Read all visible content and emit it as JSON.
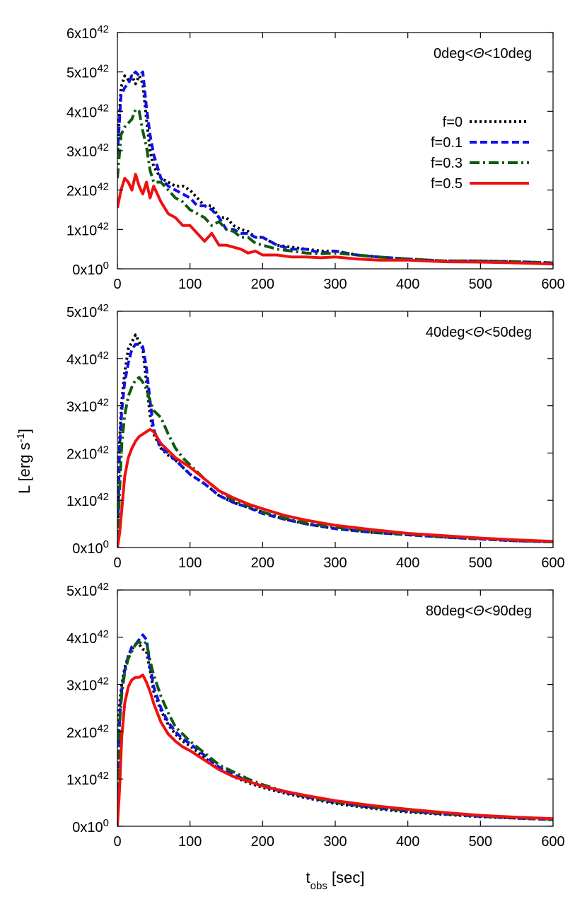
{
  "chart_data": {
    "type": "line",
    "ylabel": "L [erg s",
    "ylabel_sup": "-1",
    "ylabel_close": "]",
    "xlabel": "t",
    "xlabel_sub": "obs",
    "xlabel_rest": " [sec]",
    "xlim": [
      0,
      600
    ],
    "xticks": [
      0,
      100,
      200,
      300,
      400,
      500,
      600
    ],
    "legend_position": "top-right",
    "series_styles": [
      {
        "name": "f=0",
        "color": "#000000",
        "dash": "3,4",
        "width": 4
      },
      {
        "name": "f=0.1",
        "color": "#1010ee",
        "dash": "10,5",
        "width": 4
      },
      {
        "name": "f=0.3",
        "color": "#0f5a0f",
        "dash": "14,5,3,5",
        "width": 4
      },
      {
        "name": "f=0.5",
        "color": "#ee1111",
        "dash": "",
        "width": 4
      }
    ],
    "panels": [
      {
        "title": "0deg<Θ<10deg",
        "ylim": [
          0,
          6
        ],
        "yticks": [
          {
            "value": 0,
            "mant": "0x10",
            "exp": "0"
          },
          {
            "value": 1,
            "mant": "1x10",
            "exp": "42"
          },
          {
            "value": 2,
            "mant": "2x10",
            "exp": "42"
          },
          {
            "value": 3,
            "mant": "3x10",
            "exp": "42"
          },
          {
            "value": 4,
            "mant": "4x10",
            "exp": "42"
          },
          {
            "value": 5,
            "mant": "5x10",
            "exp": "42"
          },
          {
            "value": 6,
            "mant": "6x10",
            "exp": "42"
          }
        ],
        "legend": [
          "f=0",
          "f=0.1",
          "f=0.3",
          "f=0.5"
        ],
        "series": [
          {
            "name": "f=0",
            "x": [
              0,
              5,
              10,
              15,
              20,
              25,
              30,
              35,
              40,
              45,
              50,
              60,
              70,
              80,
              90,
              100,
              110,
              120,
              130,
              140,
              150,
              160,
              170,
              180,
              190,
              200,
              220,
              240,
              260,
              280,
              300,
              330,
              360,
              400,
              450,
              500,
              550,
              600
            ],
            "y": [
              3.0,
              4.6,
              4.9,
              4.8,
              4.9,
              4.7,
              4.9,
              4.7,
              3.8,
              3.0,
              2.6,
              2.3,
              2.2,
              2.1,
              2.1,
              2.0,
              1.8,
              1.6,
              1.6,
              1.3,
              1.3,
              1.1,
              1.0,
              0.95,
              0.8,
              0.8,
              0.6,
              0.55,
              0.5,
              0.45,
              0.45,
              0.35,
              0.3,
              0.25,
              0.2,
              0.2,
              0.18,
              0.15
            ]
          },
          {
            "name": "f=0.1",
            "x": [
              0,
              5,
              10,
              15,
              20,
              25,
              30,
              35,
              40,
              45,
              50,
              60,
              70,
              80,
              90,
              100,
              110,
              120,
              130,
              140,
              150,
              160,
              170,
              180,
              190,
              200,
              220,
              240,
              260,
              280,
              300,
              330,
              360,
              400,
              450,
              500,
              550,
              600
            ],
            "y": [
              2.9,
              4.4,
              4.6,
              4.7,
              4.9,
              5.0,
              4.9,
              5.0,
              4.1,
              3.4,
              2.9,
              2.3,
              2.1,
              2.0,
              1.9,
              1.8,
              1.6,
              1.6,
              1.5,
              1.3,
              1.0,
              1.0,
              0.9,
              0.9,
              0.8,
              0.8,
              0.6,
              0.5,
              0.5,
              0.4,
              0.45,
              0.35,
              0.3,
              0.25,
              0.2,
              0.2,
              0.18,
              0.15
            ]
          },
          {
            "name": "f=0.3",
            "x": [
              0,
              5,
              10,
              15,
              20,
              25,
              30,
              35,
              40,
              45,
              50,
              60,
              70,
              80,
              90,
              100,
              110,
              120,
              130,
              140,
              150,
              160,
              170,
              180,
              190,
              200,
              220,
              240,
              260,
              280,
              300,
              330,
              360,
              400,
              450,
              500,
              550,
              600
            ],
            "y": [
              2.3,
              3.4,
              3.6,
              3.7,
              3.8,
              4.05,
              4.0,
              3.5,
              3.1,
              2.5,
              2.2,
              2.2,
              2.0,
              1.8,
              1.7,
              1.5,
              1.4,
              1.3,
              1.1,
              1.2,
              1.0,
              0.95,
              0.8,
              0.8,
              0.65,
              0.6,
              0.5,
              0.45,
              0.4,
              0.38,
              0.4,
              0.35,
              0.3,
              0.25,
              0.2,
              0.2,
              0.18,
              0.15
            ]
          },
          {
            "name": "f=0.5",
            "x": [
              0,
              5,
              10,
              15,
              20,
              25,
              30,
              35,
              40,
              45,
              50,
              60,
              70,
              80,
              90,
              100,
              110,
              120,
              130,
              140,
              150,
              160,
              170,
              180,
              190,
              200,
              220,
              240,
              260,
              280,
              300,
              330,
              360,
              400,
              450,
              500,
              550,
              600
            ],
            "y": [
              1.55,
              2.0,
              2.3,
              2.2,
              2.0,
              2.4,
              2.1,
              1.9,
              2.2,
              1.8,
              2.1,
              1.7,
              1.4,
              1.3,
              1.1,
              1.1,
              0.9,
              0.7,
              0.9,
              0.6,
              0.6,
              0.55,
              0.5,
              0.4,
              0.45,
              0.35,
              0.35,
              0.3,
              0.3,
              0.28,
              0.3,
              0.25,
              0.22,
              0.22,
              0.18,
              0.17,
              0.15,
              0.12
            ]
          }
        ]
      },
      {
        "title": "40deg<Θ<50deg",
        "ylim": [
          0,
          5
        ],
        "yticks": [
          {
            "value": 0,
            "mant": "0x10",
            "exp": "0"
          },
          {
            "value": 1,
            "mant": "1x10",
            "exp": "42"
          },
          {
            "value": 2,
            "mant": "2x10",
            "exp": "42"
          },
          {
            "value": 3,
            "mant": "3x10",
            "exp": "42"
          },
          {
            "value": 4,
            "mant": "4x10",
            "exp": "42"
          },
          {
            "value": 5,
            "mant": "5x10",
            "exp": "42"
          }
        ],
        "legend": [],
        "series": [
          {
            "name": "f=0",
            "x": [
              0,
              3,
              6,
              10,
              15,
              20,
              25,
              30,
              35,
              40,
              45,
              50,
              60,
              70,
              80,
              90,
              100,
              120,
              140,
              160,
              180,
              200,
              230,
              260,
              300,
              350,
              400,
              450,
              500,
              550,
              600
            ],
            "y": [
              0.0,
              2.3,
              3.1,
              3.7,
              4.2,
              4.35,
              4.5,
              4.35,
              4.2,
              3.5,
              2.8,
              2.4,
              2.1,
              1.95,
              1.85,
              1.7,
              1.55,
              1.35,
              1.1,
              0.95,
              0.85,
              0.75,
              0.6,
              0.5,
              0.4,
              0.32,
              0.27,
              0.22,
              0.18,
              0.14,
              0.12
            ]
          },
          {
            "name": "f=0.1",
            "x": [
              0,
              3,
              6,
              10,
              15,
              20,
              25,
              30,
              35,
              40,
              45,
              50,
              60,
              70,
              80,
              90,
              100,
              120,
              140,
              160,
              180,
              200,
              230,
              260,
              300,
              350,
              400,
              450,
              500,
              550,
              600
            ],
            "y": [
              0.0,
              2.1,
              2.9,
              3.5,
              3.9,
              4.2,
              4.3,
              4.3,
              4.25,
              3.8,
              3.1,
              2.5,
              2.1,
              2.0,
              1.85,
              1.7,
              1.55,
              1.35,
              1.1,
              0.95,
              0.85,
              0.72,
              0.6,
              0.5,
              0.4,
              0.32,
              0.27,
              0.22,
              0.18,
              0.14,
              0.12
            ]
          },
          {
            "name": "f=0.3",
            "x": [
              0,
              3,
              6,
              10,
              15,
              20,
              25,
              30,
              35,
              40,
              45,
              50,
              60,
              70,
              80,
              90,
              100,
              120,
              140,
              160,
              180,
              200,
              230,
              260,
              300,
              350,
              400,
              450,
              500,
              550,
              600
            ],
            "y": [
              0.0,
              1.2,
              2.2,
              2.8,
              3.2,
              3.4,
              3.55,
              3.6,
              3.5,
              3.35,
              3.1,
              2.9,
              2.75,
              2.4,
              2.1,
              1.9,
              1.75,
              1.45,
              1.2,
              1.0,
              0.88,
              0.75,
              0.62,
              0.52,
              0.43,
              0.34,
              0.28,
              0.23,
              0.19,
              0.15,
              0.12
            ]
          },
          {
            "name": "f=0.5",
            "x": [
              0,
              3,
              6,
              10,
              15,
              20,
              25,
              30,
              35,
              40,
              45,
              50,
              60,
              70,
              80,
              90,
              100,
              120,
              140,
              160,
              180,
              200,
              230,
              260,
              300,
              350,
              400,
              450,
              500,
              550,
              600
            ],
            "y": [
              0.0,
              0.3,
              0.8,
              1.5,
              1.9,
              2.1,
              2.25,
              2.35,
              2.4,
              2.45,
              2.5,
              2.45,
              2.2,
              2.05,
              1.9,
              1.8,
              1.7,
              1.45,
              1.2,
              1.05,
              0.92,
              0.82,
              0.68,
              0.58,
              0.47,
              0.38,
              0.3,
              0.25,
              0.2,
              0.16,
              0.13
            ]
          }
        ]
      },
      {
        "title": "80deg<Θ<90deg",
        "ylim": [
          0,
          5
        ],
        "yticks": [
          {
            "value": 0,
            "mant": "0x10",
            "exp": "0"
          },
          {
            "value": 1,
            "mant": "1x10",
            "exp": "42"
          },
          {
            "value": 2,
            "mant": "2x10",
            "exp": "42"
          },
          {
            "value": 3,
            "mant": "3x10",
            "exp": "42"
          },
          {
            "value": 4,
            "mant": "4x10",
            "exp": "42"
          },
          {
            "value": 5,
            "mant": "5x10",
            "exp": "42"
          }
        ],
        "legend": [],
        "series": [
          {
            "name": "f=0",
            "x": [
              0,
              3,
              6,
              10,
              15,
              20,
              25,
              30,
              35,
              40,
              45,
              50,
              60,
              70,
              80,
              90,
              100,
              120,
              140,
              160,
              180,
              200,
              230,
              260,
              300,
              350,
              400,
              450,
              500,
              550,
              600
            ],
            "y": [
              1.7,
              2.6,
              3.0,
              3.35,
              3.6,
              3.75,
              3.85,
              3.85,
              3.75,
              3.7,
              3.3,
              2.85,
              2.45,
              2.15,
              1.95,
              1.8,
              1.7,
              1.45,
              1.2,
              1.05,
              0.92,
              0.82,
              0.7,
              0.6,
              0.48,
              0.38,
              0.3,
              0.25,
              0.2,
              0.17,
              0.14
            ]
          },
          {
            "name": "f=0.1",
            "x": [
              0,
              3,
              6,
              10,
              15,
              20,
              25,
              30,
              35,
              40,
              45,
              50,
              60,
              70,
              80,
              90,
              100,
              120,
              140,
              160,
              180,
              200,
              230,
              260,
              300,
              350,
              400,
              450,
              500,
              550,
              600
            ],
            "y": [
              0.1,
              2.3,
              2.9,
              3.3,
              3.6,
              3.8,
              3.85,
              3.95,
              4.05,
              3.95,
              3.4,
              2.95,
              2.5,
              2.2,
              2.0,
              1.85,
              1.75,
              1.5,
              1.25,
              1.1,
              0.95,
              0.85,
              0.72,
              0.62,
              0.5,
              0.4,
              0.32,
              0.26,
              0.21,
              0.17,
              0.14
            ]
          },
          {
            "name": "f=0.3",
            "x": [
              0,
              3,
              6,
              10,
              15,
              20,
              25,
              30,
              35,
              40,
              45,
              50,
              60,
              70,
              80,
              90,
              100,
              120,
              140,
              160,
              180,
              200,
              230,
              260,
              300,
              350,
              400,
              450,
              500,
              550,
              600
            ],
            "y": [
              0.2,
              2.2,
              2.8,
              3.25,
              3.55,
              3.7,
              3.85,
              3.9,
              3.85,
              3.9,
              3.5,
              3.2,
              2.75,
              2.4,
              2.1,
              1.95,
              1.8,
              1.55,
              1.3,
              1.15,
              1.0,
              0.88,
              0.74,
              0.63,
              0.51,
              0.41,
              0.33,
              0.27,
              0.22,
              0.18,
              0.15
            ]
          },
          {
            "name": "f=0.5",
            "x": [
              0,
              3,
              6,
              10,
              15,
              20,
              25,
              30,
              35,
              40,
              45,
              50,
              60,
              70,
              80,
              90,
              100,
              120,
              140,
              160,
              180,
              200,
              230,
              260,
              300,
              350,
              400,
              450,
              500,
              550,
              600
            ],
            "y": [
              0.0,
              0.8,
              1.9,
              2.6,
              2.95,
              3.1,
              3.15,
              3.15,
              3.2,
              3.05,
              2.85,
              2.6,
              2.2,
              1.95,
              1.8,
              1.68,
              1.6,
              1.4,
              1.2,
              1.05,
              0.95,
              0.85,
              0.74,
              0.65,
              0.54,
              0.44,
              0.36,
              0.29,
              0.23,
              0.19,
              0.16
            ]
          }
        ]
      }
    ]
  }
}
